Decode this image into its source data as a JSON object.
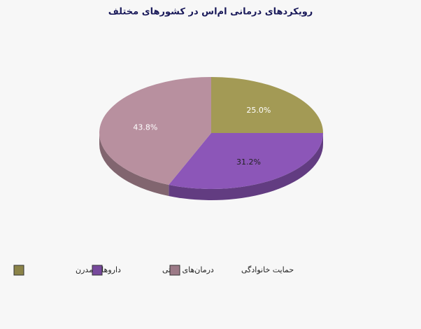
{
  "chart_data": {
    "type": "pie",
    "title": "رویکردهای درمانی ام‌اس در کشورهای مختلف",
    "categories": [
      "داروهای مدرن",
      "درمان‌های سنتی",
      "حمایت خانوادگی"
    ],
    "values": [
      25.0,
      31.2,
      43.8
    ],
    "value_labels": [
      "25.0%",
      "31.2%",
      "43.8%"
    ],
    "colors": [
      "#a39a55",
      "#8c56b8",
      "#b8909f"
    ]
  }
}
